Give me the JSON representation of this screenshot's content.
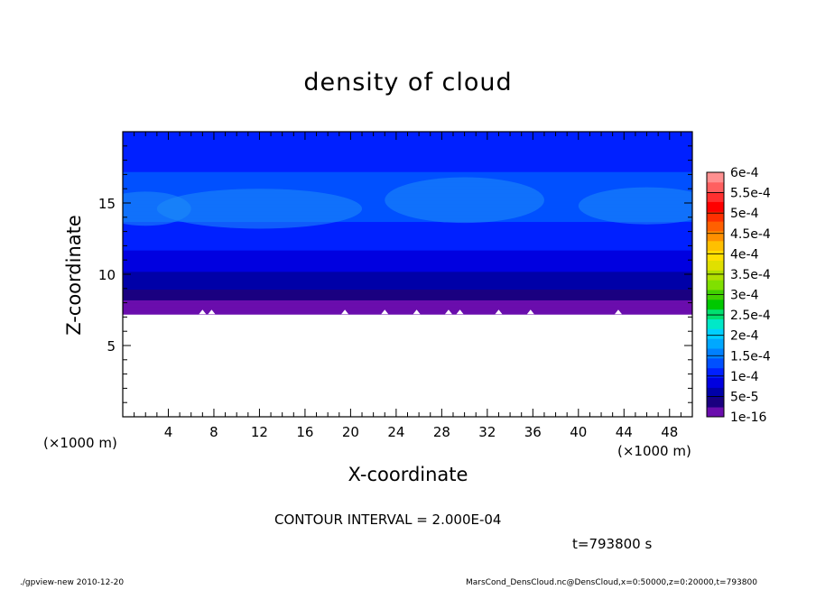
{
  "footer": {
    "program": "./gpview-new   2010-12-20",
    "source": "MarsCond_DensCloud.nc@DensCloud,x=0:50000,z=0:20000,t=793800"
  },
  "annotations": {
    "contour_interval": "CONTOUR INTERVAL = 2.000E-04",
    "time": "t=793800 s",
    "x_unit_left": "(×1000 m)",
    "x_unit_right": "(×1000 m)"
  },
  "chart_data": {
    "type": "heatmap",
    "title": "density of cloud",
    "xlabel": "X-coordinate",
    "ylabel": "Z-coordinate",
    "x_units": "×1000 m",
    "xlim": [
      0,
      50
    ],
    "ylim": [
      0,
      20
    ],
    "x_ticks": [
      4,
      8,
      12,
      16,
      20,
      24,
      28,
      32,
      36,
      40,
      44,
      48
    ],
    "y_ticks": [
      5,
      10,
      15
    ],
    "colorbar": {
      "labels": [
        "6e-4",
        "5.5e-4",
        "5e-4",
        "4.5e-4",
        "4e-4",
        "3.5e-4",
        "3e-4",
        "2.5e-4",
        "2e-4",
        "1.5e-4",
        "1e-4",
        "5e-5",
        "1e-16"
      ],
      "levels": [
        1e-16,
        2.5e-05,
        5e-05,
        7.5e-05,
        0.0001,
        0.000125,
        0.00015,
        0.000175,
        0.0002,
        0.000225,
        0.00025,
        0.000275,
        0.0003,
        0.000325,
        0.00035,
        0.000375,
        0.0004,
        0.000425,
        0.00045,
        0.000475,
        0.0005,
        0.000525,
        0.00055,
        0.000575,
        0.0006
      ],
      "colors": [
        "#6a0dad",
        "#1a0080",
        "#0000a8",
        "#0000e0",
        "#0020ff",
        "#0050ff",
        "#0080ff",
        "#00a8ff",
        "#00d0ff",
        "#00e8c8",
        "#00e070",
        "#00c800",
        "#40d000",
        "#80e000",
        "#b0e000",
        "#e0e000",
        "#ffe000",
        "#ffc000",
        "#ff9000",
        "#ff6000",
        "#ff3000",
        "#ff0000",
        "#ff3030",
        "#ff6060",
        "#ff9090"
      ]
    },
    "cloud_base_z": 7.2,
    "cloud_top_z": 20,
    "profile": [
      {
        "z": 7.2,
        "value": 1e-16
      },
      {
        "z": 8.0,
        "value": 2e-05
      },
      {
        "z": 8.8,
        "value": 5e-05
      },
      {
        "z": 10.0,
        "value": 7.5e-05
      },
      {
        "z": 11.5,
        "value": 0.0001
      },
      {
        "z": 13.0,
        "value": 0.00012
      },
      {
        "z": 15.0,
        "value": 0.00014
      },
      {
        "z": 17.0,
        "value": 0.000125
      },
      {
        "z": 18.5,
        "value": 0.000105
      },
      {
        "z": 20.0,
        "value": 0.000105
      }
    ]
  }
}
